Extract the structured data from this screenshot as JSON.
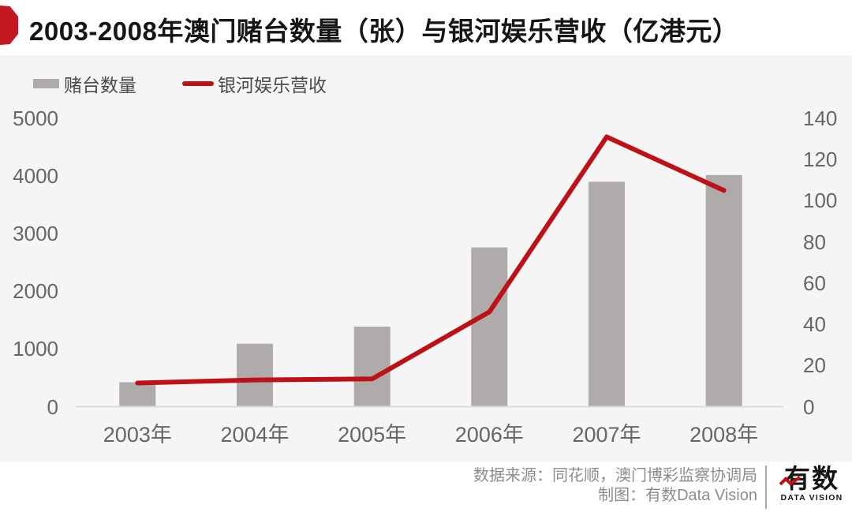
{
  "title": {
    "text": "2003-2008年澳门赌台数量（张）与银河娱乐营收（亿港元）"
  },
  "legend": [
    {
      "label": "赌台数量",
      "type": "bar",
      "color": "#AFABAB"
    },
    {
      "label": "银河娱乐营收",
      "type": "line",
      "color": "#BE1117"
    }
  ],
  "colors": {
    "accent_red": "#BE1117",
    "ribbon_red": "#C4161D",
    "bar_gray": "#AFABAB",
    "chart_background": "#F5F5F5",
    "axis_line": "#DBDBDB",
    "axis_text": "#666666"
  },
  "chart_data": {
    "type": "bar+line combo",
    "categories": [
      "2003年",
      "2004年",
      "2005年",
      "2006年",
      "2007年",
      "2008年"
    ],
    "series": [
      {
        "name": "赌台数量",
        "type": "bar",
        "axis": "left",
        "color": "#AFABAB",
        "values": [
          424,
          1092,
          1388,
          2762,
          3900,
          4017
        ]
      },
      {
        "name": "银河娱乐营收",
        "type": "line",
        "axis": "right",
        "color": "#BE1117",
        "values": [
          11.5,
          13,
          13.5,
          46,
          131,
          105
        ]
      }
    ],
    "left_axis": {
      "ticks": [
        0,
        1000,
        2000,
        3000,
        4000,
        5000
      ],
      "range": [
        0,
        5000
      ]
    },
    "right_axis": {
      "ticks": [
        0,
        20,
        40,
        60,
        80,
        100,
        120,
        140
      ],
      "range": [
        0,
        140
      ]
    },
    "grid": false,
    "legend_position": "top-left",
    "title": "2003-2008年澳门赌台数量（张）与银河娱乐营收（亿港元）"
  },
  "footer": {
    "source_line": "数据来源：同花顺，澳门博彩监察协调局",
    "credit_line": "制图：有数Data Vision",
    "logo_text": "有数",
    "logo_subtext": "DATA VISION"
  }
}
